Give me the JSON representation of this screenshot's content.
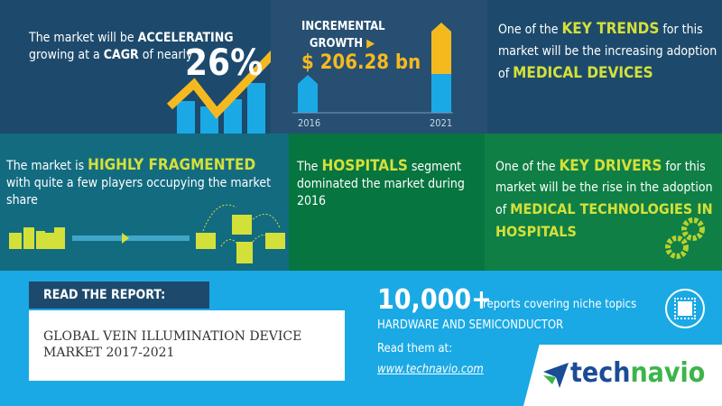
{
  "panel1": {
    "pre": "The market will be ",
    "bold1": "ACCELERATING",
    "mid": "growing at a ",
    "bold2": "CAGR",
    "post": " of nearly",
    "cagr": "26%"
  },
  "panel2": {
    "line1": "INCREMENTAL",
    "line2": "GROWTH",
    "value": "$ 206.28 bn",
    "year_start": "2016",
    "year_end": "2021"
  },
  "panel3": {
    "pre": "One of the ",
    "key": "KEY TRENDS",
    "mid": " for this market will be the increasing adoption of ",
    "hl": "MEDICAL DEVICES"
  },
  "panel4": {
    "pre": "The market is ",
    "hl": "HIGHLY FRAGMENTED",
    "post": " with quite a few players occupying the market share"
  },
  "panel5": {
    "pre": "The ",
    "hl": "HOSPITALS",
    "post": " segment dominated the market during 2016"
  },
  "panel6": {
    "pre": "One of the ",
    "key": "KEY DRIVERS",
    "mid": " for this market will be the rise in the adoption of ",
    "hl": "MEDICAL TECHNOLOGIES IN HOSPITALS"
  },
  "footer": {
    "read_label": "READ THE REPORT:",
    "report_title": "GLOBAL VEIN ILLUMINATION DEVICE MARKET 2017-2021",
    "count": "10,000+",
    "count_desc": "reports covering niche topics",
    "category": "HARDWARE AND SEMICONDUCTOR",
    "read_at": "Read them at:",
    "url": "www.technavio.com",
    "logo_text_a": "tech",
    "logo_text_b": "navio"
  },
  "colors": {
    "navy": "#1d4a6c",
    "navy2": "#274f72",
    "teal": "#136b80",
    "green": "#067540",
    "green2": "#0f7f45",
    "yellow": "#d4e03a",
    "gold": "#f5b920",
    "blue": "#1aa9e5"
  }
}
